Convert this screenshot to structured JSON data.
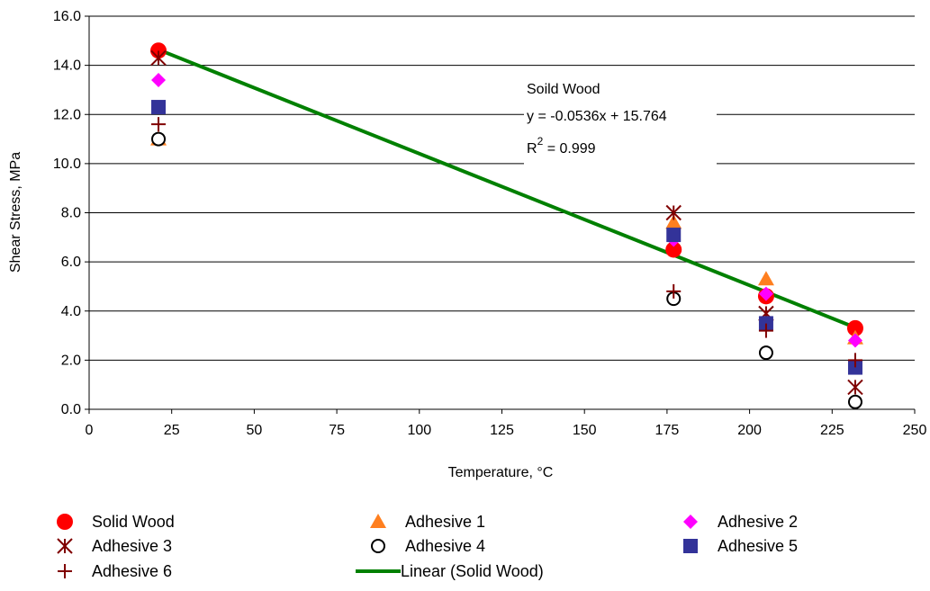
{
  "chart_data": {
    "type": "scatter",
    "xlabel": "Temperature, °C",
    "ylabel": "Shear Stress, MPa",
    "xlim": [
      0,
      250
    ],
    "ylim": [
      0,
      16
    ],
    "x_ticks": [
      "0",
      "25",
      "50",
      "75",
      "100",
      "125",
      "150",
      "175",
      "200",
      "225",
      "250"
    ],
    "y_ticks": [
      "0.0",
      "2.0",
      "4.0",
      "6.0",
      "8.0",
      "10.0",
      "12.0",
      "14.0",
      "16.0"
    ],
    "grid": "horizontal",
    "legend_position": "bottom",
    "series": [
      {
        "name": "Solid Wood",
        "marker": "circle",
        "color": "#ff0000",
        "points": [
          [
            21,
            14.6
          ],
          [
            177,
            6.5
          ],
          [
            205,
            4.6
          ],
          [
            232,
            3.3
          ]
        ]
      },
      {
        "name": "Adhesive 1",
        "marker": "triangle",
        "color": "#ff7f1f",
        "points": [
          [
            21,
            11.0
          ],
          [
            177,
            7.6
          ],
          [
            205,
            5.3
          ],
          [
            232,
            2.9
          ]
        ]
      },
      {
        "name": "Adhesive 2",
        "marker": "diamond",
        "color": "#ff00ff",
        "points": [
          [
            21,
            13.4
          ],
          [
            177,
            6.9
          ],
          [
            205,
            4.7
          ],
          [
            232,
            2.8
          ]
        ]
      },
      {
        "name": "Adhesive 3",
        "marker": "asterisk",
        "color": "#800000",
        "points": [
          [
            21,
            14.3
          ],
          [
            177,
            8.0
          ],
          [
            205,
            3.9
          ],
          [
            232,
            0.9
          ]
        ]
      },
      {
        "name": "Adhesive 4",
        "marker": "open-circle",
        "color": "#000000",
        "points": [
          [
            21,
            11.0
          ],
          [
            177,
            4.5
          ],
          [
            205,
            2.3
          ],
          [
            232,
            0.3
          ]
        ]
      },
      {
        "name": "Adhesive 5",
        "marker": "square",
        "color": "#333399",
        "points": [
          [
            21,
            12.3
          ],
          [
            177,
            7.1
          ],
          [
            205,
            3.5
          ],
          [
            232,
            1.7
          ]
        ]
      },
      {
        "name": "Adhesive 6",
        "marker": "plus",
        "color": "#800000",
        "points": [
          [
            21,
            11.6
          ],
          [
            177,
            4.8
          ],
          [
            205,
            3.2
          ],
          [
            232,
            2.0
          ]
        ]
      }
    ],
    "trendline": {
      "name": "Linear (Solid Wood)",
      "color": "#008000",
      "slope": -0.0536,
      "intercept": 15.764,
      "x_range": [
        21,
        232
      ]
    },
    "annotation": {
      "line1": "Soild Wood",
      "line2": "y = -0.0536x + 15.764",
      "line3_base": "R",
      "line3_sup": "2",
      "line3_rest": " = 0.999"
    }
  }
}
